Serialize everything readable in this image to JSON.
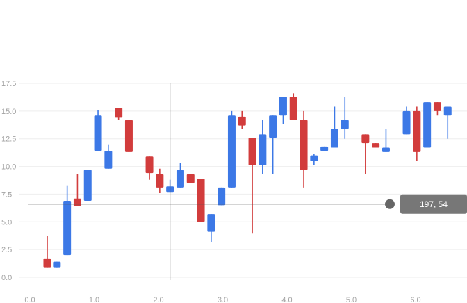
{
  "chart_data": {
    "type": "candlestick",
    "xlim": [
      0.0,
      6.8
    ],
    "ylim": [
      0,
      17.5
    ],
    "x_ticks": [
      {
        "value": 0.0,
        "label": "0.0"
      },
      {
        "value": 1.0,
        "label": "1.0"
      },
      {
        "value": 2.0,
        "label": "2.0"
      },
      {
        "value": 3.0,
        "label": "3.0"
      },
      {
        "value": 4.0,
        "label": "4.0"
      },
      {
        "value": 5.0,
        "label": "5.0"
      },
      {
        "value": 6.0,
        "label": "6.0"
      }
    ],
    "y_ticks": [
      {
        "value": 0,
        "label": "0.0"
      },
      {
        "value": 2.5,
        "label": "2.5"
      },
      {
        "value": 5,
        "label": "5.0"
      },
      {
        "value": 7.5,
        "label": "7.5"
      },
      {
        "value": 10,
        "label": "10.0"
      },
      {
        "value": 12.5,
        "label": "12.5"
      },
      {
        "value": 15,
        "label": "15.0"
      },
      {
        "value": 17.5,
        "label": "17.5"
      }
    ],
    "grid": true,
    "colors": {
      "up": "#3c78e6",
      "down": "#d23c3c",
      "grid": "#eeeeee",
      "crosshair": "#555555"
    },
    "candles": [
      {
        "x": 0.27,
        "open": 1.7,
        "high": 3.7,
        "low": 0.9,
        "close": 0.9
      },
      {
        "x": 0.42,
        "open": 0.9,
        "high": 1.4,
        "low": 0.9,
        "close": 1.4
      },
      {
        "x": 0.58,
        "open": 2.0,
        "high": 8.3,
        "low": 2.0,
        "close": 6.9
      },
      {
        "x": 0.74,
        "open": 7.1,
        "high": 9.3,
        "low": 6.4,
        "close": 6.4
      },
      {
        "x": 0.9,
        "open": 6.9,
        "high": 9.7,
        "low": 6.9,
        "close": 9.7
      },
      {
        "x": 1.06,
        "open": 11.4,
        "high": 15.1,
        "low": 11.4,
        "close": 14.6
      },
      {
        "x": 1.22,
        "open": 9.8,
        "high": 12.0,
        "low": 9.8,
        "close": 11.4
      },
      {
        "x": 1.38,
        "open": 15.3,
        "high": 15.3,
        "low": 14.2,
        "close": 14.4
      },
      {
        "x": 1.54,
        "open": 14.2,
        "high": 14.2,
        "low": 11.3,
        "close": 11.3
      },
      {
        "x": 1.86,
        "open": 10.9,
        "high": 10.9,
        "low": 8.8,
        "close": 9.4
      },
      {
        "x": 2.02,
        "open": 9.3,
        "high": 9.8,
        "low": 7.6,
        "close": 8.1
      },
      {
        "x": 2.18,
        "open": 7.7,
        "high": 8.8,
        "low": 7.7,
        "close": 8.2
      },
      {
        "x": 2.34,
        "open": 8.1,
        "high": 10.3,
        "low": 8.1,
        "close": 9.7
      },
      {
        "x": 2.5,
        "open": 9.3,
        "high": 9.3,
        "low": 8.5,
        "close": 8.5
      },
      {
        "x": 2.66,
        "open": 8.9,
        "high": 8.9,
        "low": 5.0,
        "close": 5.0
      },
      {
        "x": 2.82,
        "open": 4.1,
        "high": 5.7,
        "low": 3.2,
        "close": 5.7
      },
      {
        "x": 2.98,
        "open": 6.5,
        "high": 8.1,
        "low": 6.5,
        "close": 8.1
      },
      {
        "x": 3.14,
        "open": 8.1,
        "high": 15.0,
        "low": 8.1,
        "close": 14.6
      },
      {
        "x": 3.3,
        "open": 14.5,
        "high": 15.0,
        "low": 13.4,
        "close": 13.7
      },
      {
        "x": 3.46,
        "open": 12.6,
        "high": 12.6,
        "low": 4.0,
        "close": 10.1
      },
      {
        "x": 3.62,
        "open": 10.1,
        "high": 14.2,
        "low": 9.3,
        "close": 12.9
      },
      {
        "x": 3.78,
        "open": 12.6,
        "high": 14.6,
        "low": 9.3,
        "close": 14.6
      },
      {
        "x": 3.94,
        "open": 14.6,
        "high": 16.3,
        "low": 13.8,
        "close": 16.3
      },
      {
        "x": 4.1,
        "open": 16.3,
        "high": 16.6,
        "low": 14.2,
        "close": 14.2
      },
      {
        "x": 4.26,
        "open": 14.2,
        "high": 15.0,
        "low": 8.1,
        "close": 9.7
      },
      {
        "x": 4.42,
        "open": 10.5,
        "high": 11.1,
        "low": 10.1,
        "close": 11.0
      },
      {
        "x": 4.58,
        "open": 11.4,
        "high": 11.8,
        "low": 11.4,
        "close": 11.8
      },
      {
        "x": 4.74,
        "open": 11.7,
        "high": 15.4,
        "low": 11.7,
        "close": 13.4
      },
      {
        "x": 4.9,
        "open": 13.4,
        "high": 16.3,
        "low": 12.5,
        "close": 14.2
      },
      {
        "x": 5.22,
        "open": 12.9,
        "high": 12.9,
        "low": 9.3,
        "close": 12.1
      },
      {
        "x": 5.38,
        "open": 12.1,
        "high": 12.1,
        "low": 11.7,
        "close": 11.7
      },
      {
        "x": 5.54,
        "open": 11.3,
        "high": 13.4,
        "low": 11.3,
        "close": 11.7
      },
      {
        "x": 5.86,
        "open": 12.9,
        "high": 15.4,
        "low": 12.9,
        "close": 15.0
      },
      {
        "x": 6.02,
        "open": 15.0,
        "high": 15.4,
        "low": 10.5,
        "close": 11.3
      },
      {
        "x": 6.18,
        "open": 11.7,
        "high": 15.8,
        "low": 11.7,
        "close": 15.8
      },
      {
        "x": 6.34,
        "open": 15.8,
        "high": 15.8,
        "low": 14.6,
        "close": 15.0
      },
      {
        "x": 6.5,
        "open": 14.6,
        "high": 15.4,
        "low": 12.5,
        "close": 15.4
      }
    ],
    "crosshair": {
      "x": 2.18,
      "y": 6.6
    },
    "readout": {
      "text": "197, 54",
      "marker_x": 5.6
    }
  }
}
